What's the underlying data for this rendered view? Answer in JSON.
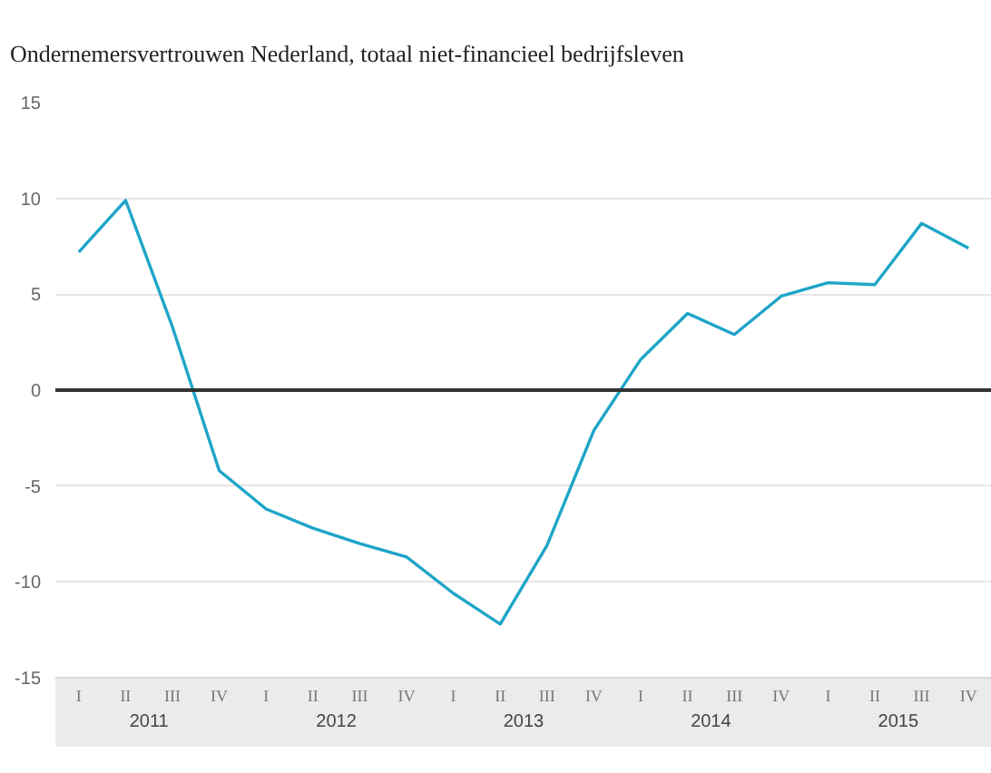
{
  "chart_data": {
    "type": "line",
    "title": "Ondernemersvertrouwen Nederland, totaal niet-financieel bedrijfsleven",
    "categories": [
      "I",
      "II",
      "III",
      "IV",
      "I",
      "II",
      "III",
      "IV",
      "I",
      "II",
      "III",
      "IV",
      "I",
      "II",
      "III",
      "IV",
      "I",
      "II",
      "III",
      "IV"
    ],
    "series": [
      {
        "color": "#1ea5c8",
        "values": [
          7.2,
          9.9,
          3.3,
          -4.2,
          -6.2,
          -7.2,
          -8.0,
          -8.7,
          -10.6,
          -12.2,
          -8.1,
          -2.1,
          1.6,
          4.0,
          2.9,
          4.9,
          5.6,
          5.5,
          8.7,
          7.4
        ]
      }
    ],
    "ylim": [
      -15,
      15
    ],
    "yticks": [
      -15,
      -10,
      -5,
      0,
      5,
      10,
      15
    ],
    "grid": "y",
    "ref_lines": [
      {
        "axis": "y",
        "value": 0,
        "color": "#333333"
      }
    ],
    "annotations": [
      "2011",
      "2012",
      "2013",
      "2014",
      "2015"
    ]
  }
}
